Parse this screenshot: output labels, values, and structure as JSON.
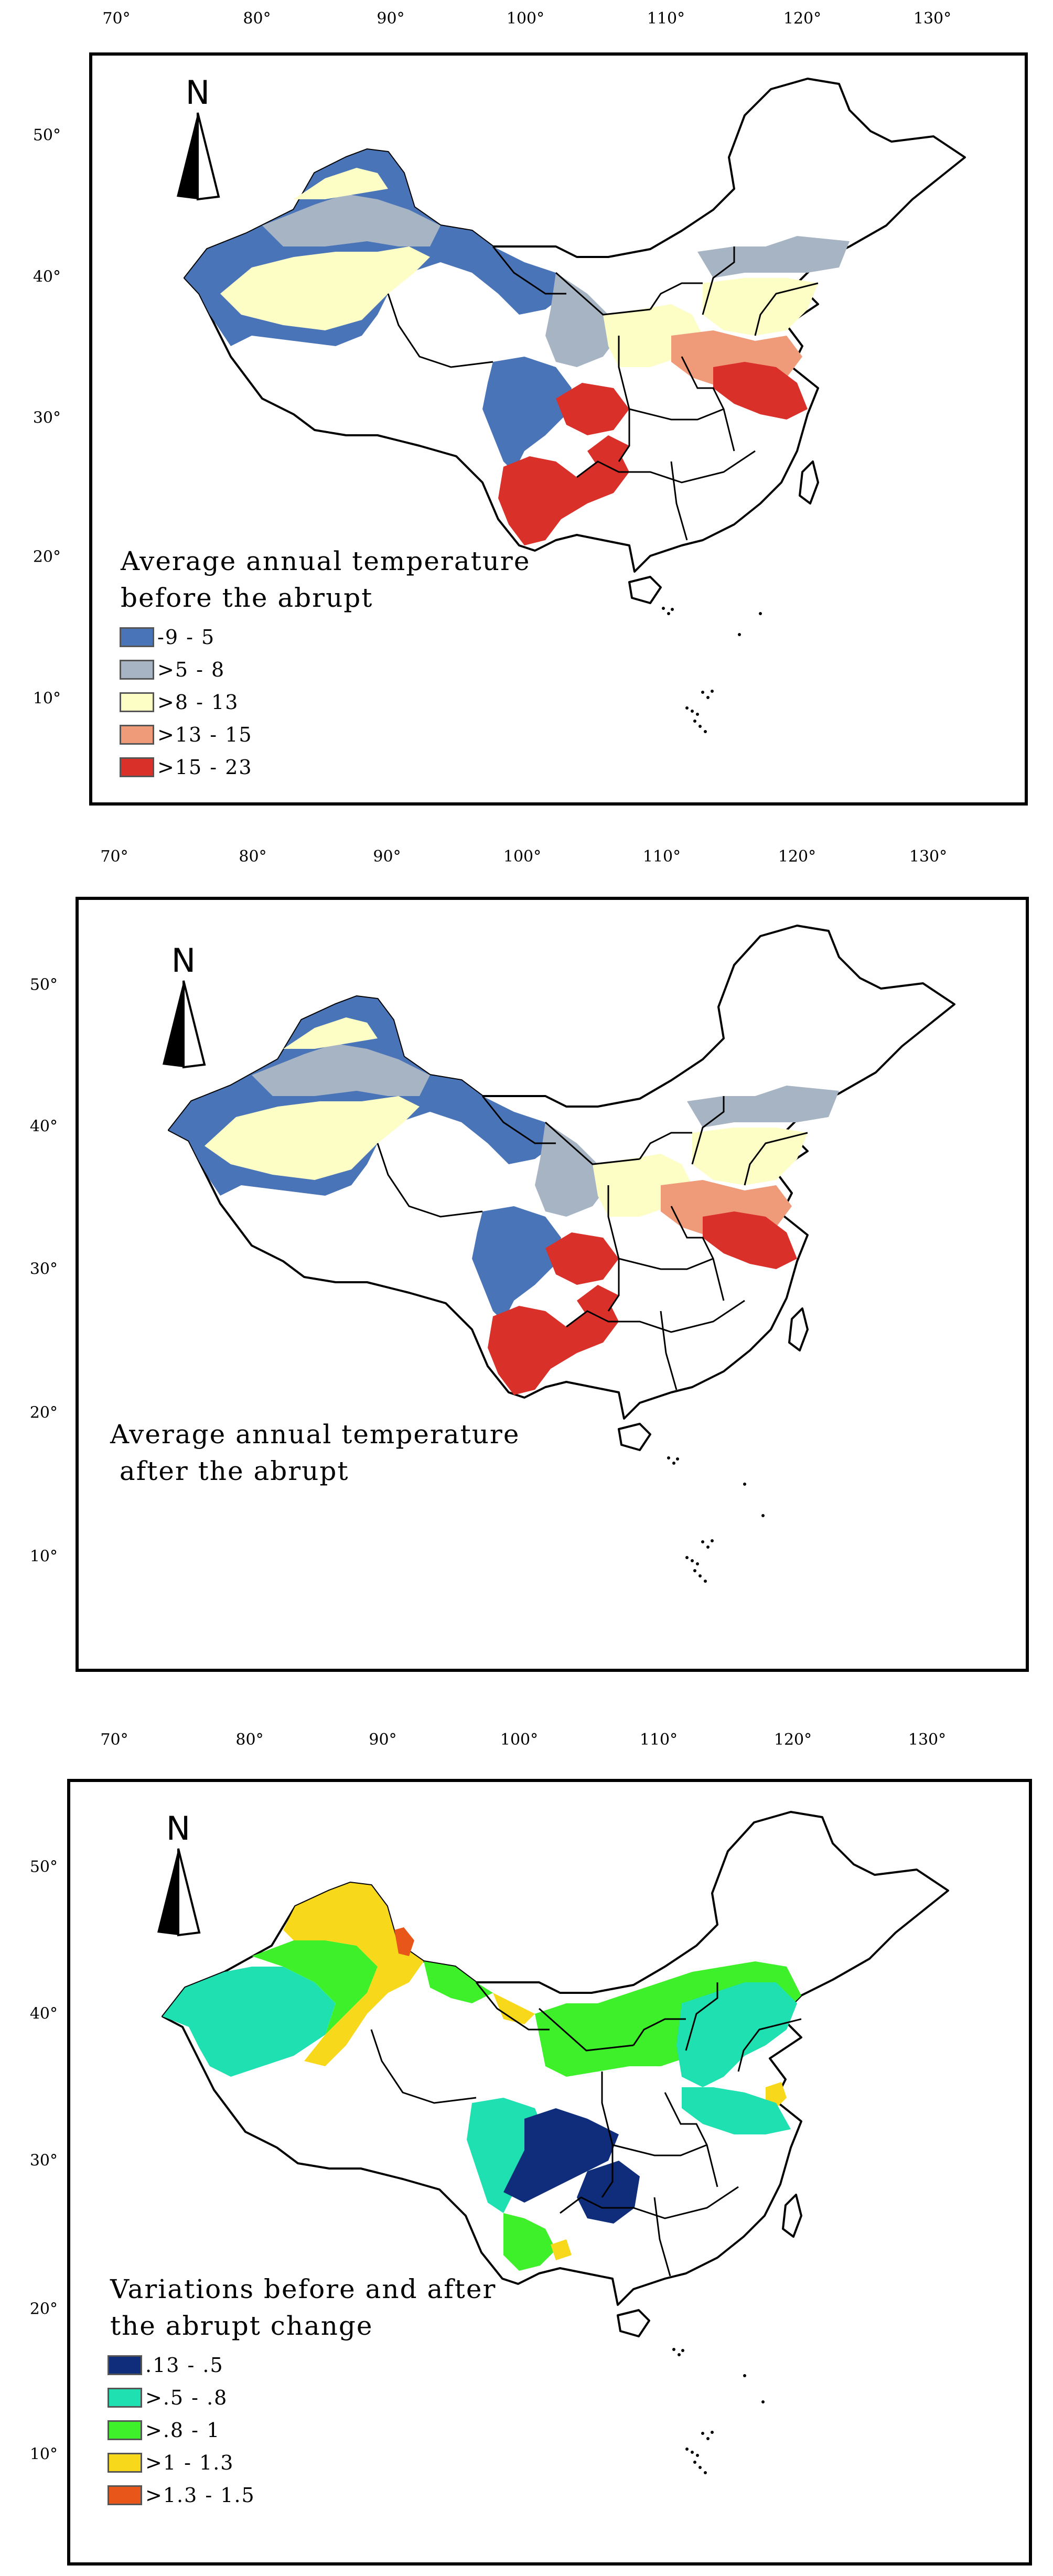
{
  "colors": {
    "t_1": "#4a74b8",
    "t_2": "#a7b4c3",
    "t_3": "#fdfdc6",
    "t_4": "#ef9a78",
    "t_5": "#d9302a",
    "v_1": "#0f2d7a",
    "v_2": "#1ee0b0",
    "v_3": "#3ef02a",
    "v_4": "#f8d81a",
    "v_5": "#e8561a"
  },
  "north_label": "N",
  "panels": [
    {
      "lon_ticks": [
        "70°",
        "80°",
        "90°",
        "100°",
        "110°",
        "120°",
        "130°"
      ],
      "lat_ticks": [
        "50°",
        "40°",
        "30°",
        "20°",
        "10°"
      ],
      "title_line1": "Average annual temperature",
      "title_line2": "before the abrupt",
      "legend": [
        {
          "label": "-9 - 5",
          "color": "#4a74b8"
        },
        {
          "label": ">5 - 8",
          "color": "#a7b4c3"
        },
        {
          "label": ">8 - 13",
          "color": "#fdfdc6"
        },
        {
          "label": ">13 - 15",
          "color": "#ef9a78"
        },
        {
          "label": ">15 - 23",
          "color": "#d9302a"
        }
      ]
    },
    {
      "lon_ticks": [
        "70°",
        "80°",
        "90°",
        "100°",
        "110°",
        "120°",
        "130°"
      ],
      "lat_ticks": [
        "50°",
        "40°",
        "30°",
        "20°",
        "10°"
      ],
      "title_line1": "Average annual temperature",
      "title_line2": " after the abrupt",
      "legend": []
    },
    {
      "lon_ticks": [
        "70°",
        "80°",
        "90°",
        "100°",
        "110°",
        "120°",
        "130°"
      ],
      "lat_ticks": [
        "50°",
        "40°",
        "30°",
        "20°",
        "10°"
      ],
      "title_line1": "Variations before and after",
      "title_line2": "the abrupt change",
      "legend": [
        {
          "label": ".13 - .5",
          "color": "#0f2d7a"
        },
        {
          "label": ">.5 - .8",
          "color": "#1ee0b0"
        },
        {
          "label": ">.8 - 1",
          "color": "#3ef02a"
        },
        {
          "label": ">1 - 1.3",
          "color": "#f8d81a"
        },
        {
          "label": ">1.3 - 1.5",
          "color": "#e8561a"
        }
      ]
    }
  ]
}
